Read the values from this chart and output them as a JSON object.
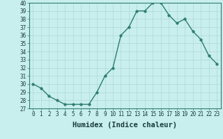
{
  "x": [
    0,
    1,
    2,
    3,
    4,
    5,
    6,
    7,
    8,
    9,
    10,
    11,
    12,
    13,
    14,
    15,
    16,
    17,
    18,
    19,
    20,
    21,
    22,
    23
  ],
  "y": [
    30,
    29.5,
    28.5,
    28,
    27.5,
    27.5,
    27.5,
    27.5,
    29,
    31,
    32,
    36,
    37,
    39,
    39,
    40,
    40,
    38.5,
    37.5,
    38,
    36.5,
    35.5,
    33.5,
    32.5
  ],
  "line_color": "#2e7d6e",
  "marker_color": "#2e7d6e",
  "bg_color": "#c8eeee",
  "grid_color": "#b0d8d8",
  "xlabel": "Humidex (Indice chaleur)",
  "ylim": [
    27,
    40
  ],
  "xlim": [
    -0.5,
    23.5
  ],
  "yticks": [
    27,
    28,
    29,
    30,
    31,
    32,
    33,
    34,
    35,
    36,
    37,
    38,
    39,
    40
  ],
  "xticks": [
    0,
    1,
    2,
    3,
    4,
    5,
    6,
    7,
    8,
    9,
    10,
    11,
    12,
    13,
    14,
    15,
    16,
    17,
    18,
    19,
    20,
    21,
    22,
    23
  ],
  "tick_label_fontsize": 5.5,
  "xlabel_fontsize": 7.5,
  "line_width": 1.0,
  "marker_size": 2.5
}
